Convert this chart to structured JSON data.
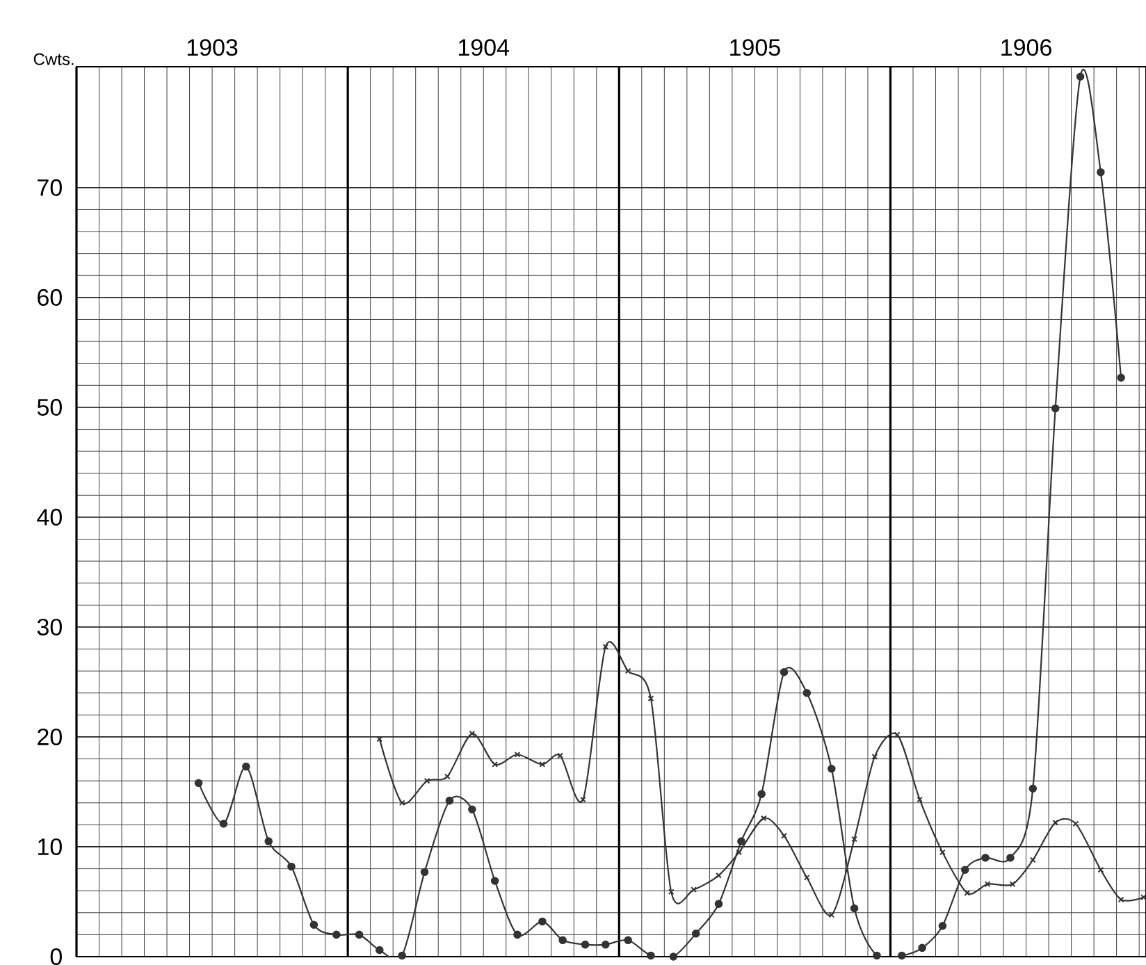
{
  "chart_data": {
    "type": "line",
    "ylabel": "Cwts.",
    "xlim": [
      1902.5,
      1906.442
    ],
    "ylim": [
      0,
      81
    ],
    "xticks": [
      {
        "value": 1902.5,
        "label": null
      },
      1903,
      {
        "value": 1903.5,
        "label": null
      },
      1904,
      {
        "value": 1904.5,
        "label": null
      },
      1905,
      {
        "value": 1905.5,
        "label": null
      },
      1906
    ],
    "yticks": [
      0,
      10,
      20,
      30,
      40,
      50,
      60,
      70
    ],
    "grid": true,
    "series": [
      {
        "color": "#333333",
        "marker": "circle",
        "x": [
          1902.95,
          1903.042,
          1903.125,
          1903.208,
          1903.292,
          1903.375,
          1903.458,
          1903.542,
          1903.617,
          1903.7,
          1903.783,
          1903.875,
          1903.958,
          1904.042,
          1904.125,
          1904.217,
          1904.292,
          1904.375,
          1904.45,
          1904.533,
          1904.617,
          1904.7,
          1904.783,
          1904.867,
          1904.95,
          1905.025,
          1905.108,
          1905.192,
          1905.283,
          1905.367,
          1905.45,
          1905.542,
          1905.617,
          1905.692,
          1905.775,
          1905.85,
          1905.942,
          1906.025,
          1906.108,
          1906.2,
          1906.275,
          1906.35
        ],
        "values": [
          15.8,
          12.1,
          17.3,
          10.5,
          8.2,
          2.9,
          2.0,
          2.0,
          0.6,
          0.1,
          7.7,
          14.2,
          13.4,
          6.9,
          2.0,
          3.2,
          1.5,
          1.1,
          1.1,
          1.5,
          0.1,
          0.0,
          2.1,
          4.8,
          10.5,
          14.8,
          25.9,
          24.0,
          17.1,
          4.4,
          0.1,
          0.1,
          0.8,
          2.8,
          7.9,
          9.0,
          9.0,
          15.3,
          49.9,
          80.1,
          71.4,
          52.7
        ]
      },
      {
        "color": "#333333",
        "marker": "cross",
        "x": [
          1903.617,
          1903.7,
          1903.792,
          1903.867,
          1903.958,
          1904.042,
          1904.125,
          1904.217,
          1904.283,
          1904.367,
          1904.45,
          1904.533,
          1904.617,
          1904.692,
          1904.775,
          1904.867,
          1904.942,
          1905.033,
          1905.108,
          1905.192,
          1905.283,
          1905.367,
          1905.442,
          1905.525,
          1905.608,
          1905.692,
          1905.783,
          1905.858,
          1905.95,
          1906.025,
          1906.108,
          1906.183,
          1906.275,
          1906.35,
          1906.433
        ],
        "values": [
          19.8,
          14.0,
          16.0,
          16.4,
          20.3,
          17.5,
          18.4,
          17.5,
          18.3,
          14.3,
          28.2,
          26.0,
          23.5,
          5.9,
          6.1,
          7.4,
          9.5,
          12.6,
          11.0,
          7.2,
          3.8,
          10.7,
          18.2,
          20.2,
          14.3,
          9.5,
          5.8,
          6.6,
          6.6,
          8.8,
          12.2,
          12.1,
          7.9,
          5.2,
          5.4
        ]
      }
    ]
  }
}
